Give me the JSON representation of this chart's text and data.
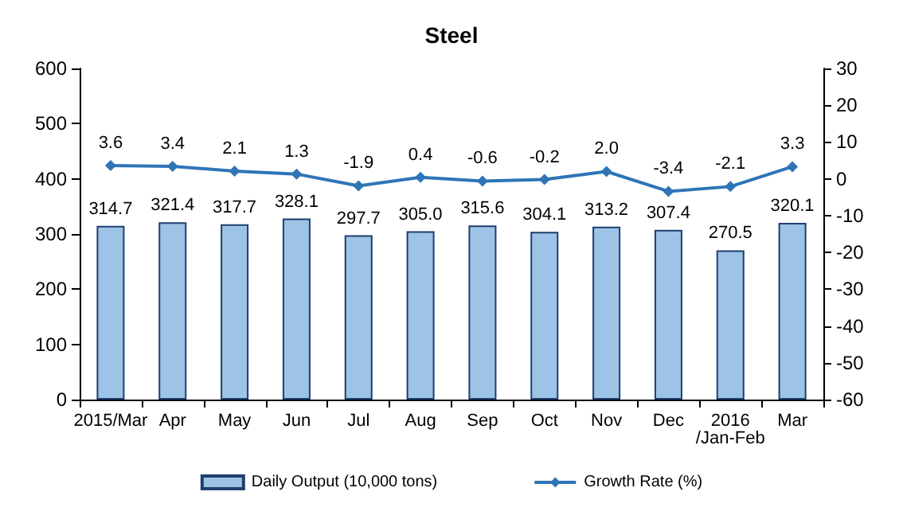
{
  "chart_data": {
    "type": "bar",
    "title": "Steel",
    "categories": [
      "2015/Mar",
      "Apr",
      "May",
      "Jun",
      "Jul",
      "Aug",
      "Sep",
      "Oct",
      "Nov",
      "Dec",
      "2016\n/Jan-Feb",
      "Mar"
    ],
    "series": [
      {
        "name": "Daily Output (10,000 tons)",
        "color": "#9dc3e6",
        "values": [
          314.7,
          321.4,
          317.7,
          328.1,
          297.7,
          305.0,
          315.6,
          304.1,
          313.2,
          307.4,
          270.5,
          320.1
        ],
        "value_labels": [
          "314.7",
          "321.4",
          "317.7",
          "328.1",
          "297.7",
          "305.0",
          "315.6",
          "304.1",
          "313.2",
          "307.4",
          "270.5",
          "320.1"
        ]
      },
      {
        "name": "Growth Rate (%)",
        "type": "line",
        "axis": "y2",
        "color": "#2e75b6",
        "marker": "diamond",
        "values": [
          3.6,
          3.4,
          2.1,
          1.3,
          -1.9,
          0.4,
          -0.6,
          -0.2,
          2.0,
          -3.4,
          -2.1,
          3.3
        ],
        "value_labels": [
          "3.6",
          "3.4",
          "2.1",
          "1.3",
          "-1.9",
          "0.4",
          "-0.6",
          "-0.2",
          "2.0",
          "-3.4",
          "-2.1",
          "3.3"
        ]
      }
    ],
    "ylim": [
      0,
      600
    ],
    "yticks": [
      0,
      100,
      200,
      300,
      400,
      500,
      600
    ],
    "y2lim": [
      -60,
      30
    ],
    "y2ticks": [
      -60,
      -50,
      -40,
      -30,
      -20,
      -10,
      0,
      10,
      20,
      30
    ],
    "grid": false,
    "legend": "bottom"
  }
}
